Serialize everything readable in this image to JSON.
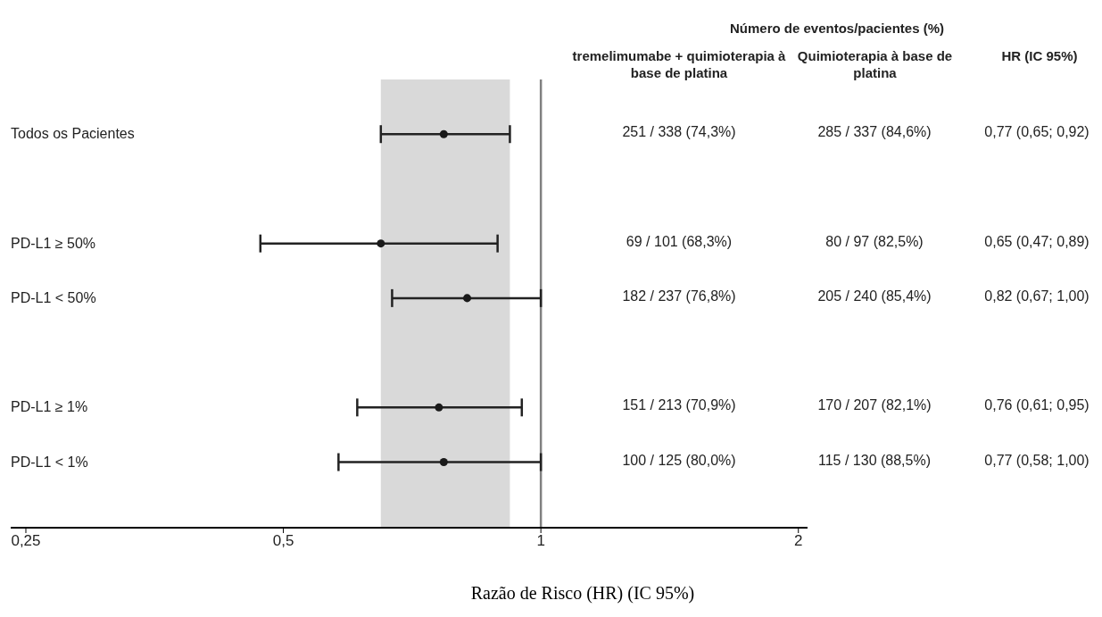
{
  "chart_data": {
    "type": "scatter",
    "orientation": "horizontal",
    "categories": [
      "Todos os Pacientes",
      null,
      "PD-L1 ≥ 50%",
      "PD-L1 < 50%",
      null,
      "PD-L1 ≥ 1%",
      "PD-L1 < 1%"
    ],
    "values": [
      0.77,
      null,
      0.65,
      0.82,
      null,
      0.76,
      0.77
    ],
    "errors": [
      [
        0.65,
        0.92
      ],
      null,
      [
        0.47,
        0.89
      ],
      [
        0.67,
        1.0
      ],
      null,
      [
        0.61,
        0.95
      ],
      [
        0.58,
        1.0
      ]
    ],
    "value_labels": [
      "0,77 (0,65; 0,92)",
      null,
      "0,65 (0,47; 0,89)",
      "0,82 (0,67; 1,00)",
      null,
      "0,76 (0,61; 0,95)",
      "0,77 (0,58; 1,00)"
    ],
    "color": "#1a1a1a",
    "marker": "circle",
    "log": "x",
    "grid": false,
    "legend": false,
    "xlim": [
      0.24,
      2.05
    ],
    "xticks": [
      {
        "value": 0.25,
        "label": "0,25"
      },
      {
        "value": 0.5,
        "label": "0,5"
      },
      1,
      2
    ],
    "xlabel": "Razão de Risco (HR) (IC 95%)",
    "ref_lines": [
      {
        "axis": "x",
        "value": 1,
        "color": "#808080"
      }
    ],
    "bands": [
      {
        "axis": "x",
        "from": 0.65,
        "to": 0.92,
        "color": "#d9d9d9"
      }
    ],
    "annotations": [
      "Número de eventos/pacientes (%)",
      "tremelimumabe + quimioterapia à base de platina",
      "Quimioterapia à base de platina",
      "HR (IC 95%)",
      "251 / 338 (74,3%)",
      "285 / 337 (84,6%)",
      "69 / 101 (68,3%)",
      "80 / 97 (82,5%)",
      "182 / 237 (76,8%)",
      "205 / 240 (85,4%)",
      "151 / 213 (70,9%)",
      "170 / 207 (82,1%)",
      "100 / 125 (80,0%)",
      "115 / 130 (88,5%)"
    ]
  }
}
